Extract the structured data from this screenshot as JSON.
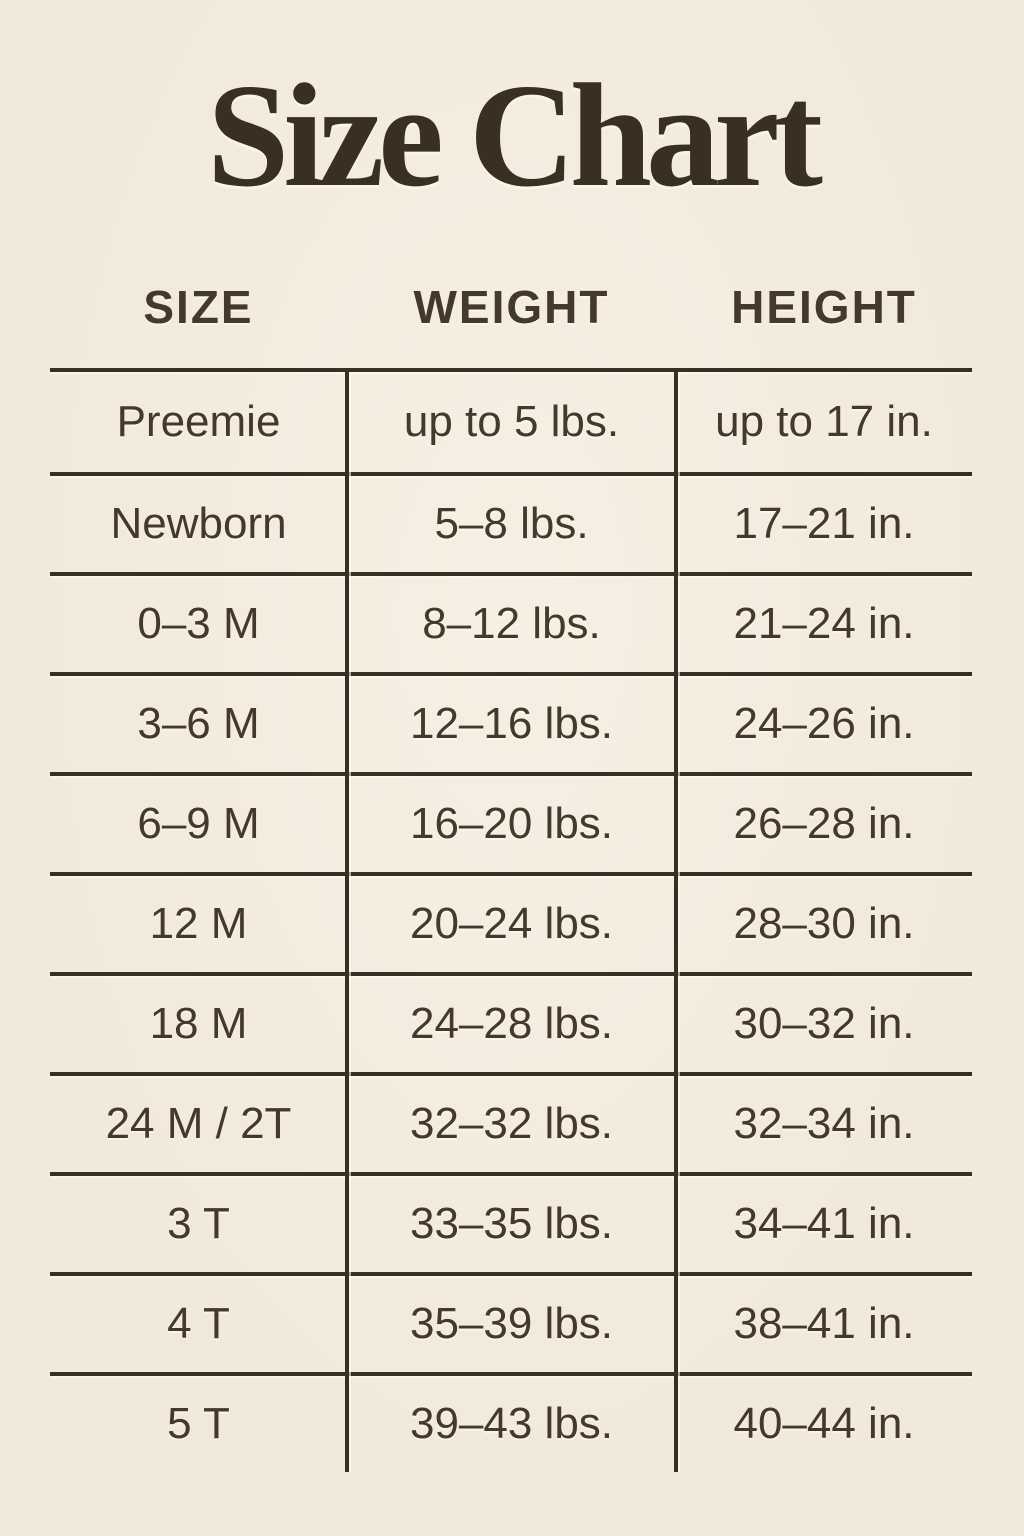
{
  "title": "Size Chart",
  "colors": {
    "background": "#f1e9db",
    "line": "#382e21",
    "text": "#44392a",
    "title": "#3a3021"
  },
  "chart_data": {
    "type": "table",
    "title": "Size Chart",
    "columns": [
      "SIZE",
      "WEIGHT",
      "HEIGHT"
    ],
    "rows": [
      {
        "size": "Preemie",
        "weight": "up to 5 lbs.",
        "height": "up to 17 in."
      },
      {
        "size": "Newborn",
        "weight": "5–8 lbs.",
        "height": "17–21 in."
      },
      {
        "size": "0–3 M",
        "weight": "8–12 lbs.",
        "height": "21–24 in."
      },
      {
        "size": "3–6 M",
        "weight": "12–16 lbs.",
        "height": "24–26 in."
      },
      {
        "size": "6–9 M",
        "weight": "16–20 lbs.",
        "height": "26–28 in."
      },
      {
        "size": "12 M",
        "weight": "20–24 lbs.",
        "height": "28–30 in."
      },
      {
        "size": "18 M",
        "weight": "24–28 lbs.",
        "height": "30–32 in."
      },
      {
        "size": "24 M / 2T",
        "weight": "32–32 lbs.",
        "height": "32–34 in."
      },
      {
        "size": "3 T",
        "weight": "33–35 lbs.",
        "height": "34–41 in."
      },
      {
        "size": "4 T",
        "weight": "35–39 lbs.",
        "height": "38–41 in."
      },
      {
        "size": "5 T",
        "weight": "39–43 lbs.",
        "height": "40–44 in."
      }
    ]
  }
}
